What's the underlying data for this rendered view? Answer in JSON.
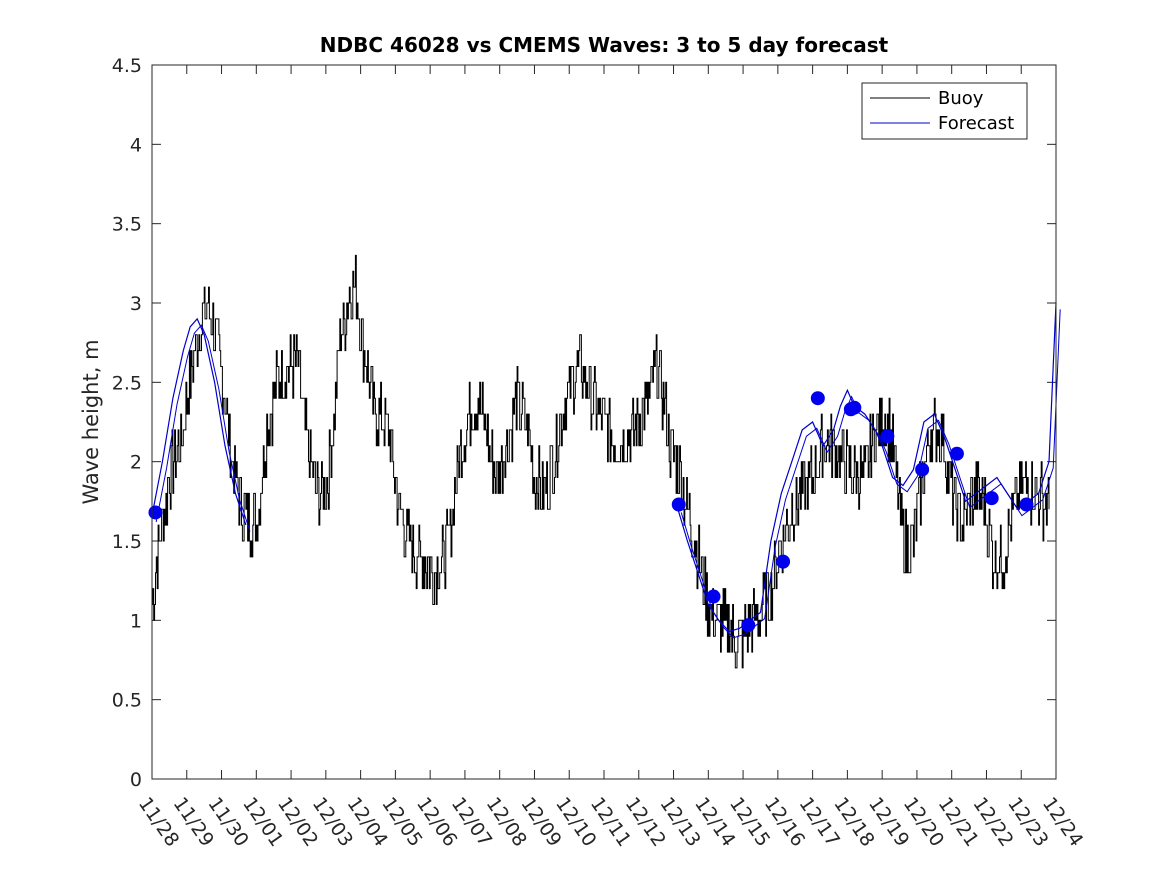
{
  "chart_data": {
    "type": "line",
    "title": "NDBC 46028 vs CMEMS Waves: 3 to 5 day forecast",
    "xlabel": "",
    "ylabel": "Wave height, m",
    "ylim": [
      0,
      4.5
    ],
    "xlim": [
      0,
      26
    ],
    "y_ticks": [
      "0",
      "0.5",
      "1",
      "1.5",
      "2",
      "2.5",
      "3",
      "3.5",
      "4",
      "4.5"
    ],
    "x_tick_labels": [
      "11/28",
      "11/29",
      "11/30",
      "12/01",
      "12/02",
      "12/03",
      "12/04",
      "12/05",
      "12/06",
      "12/07",
      "12/08",
      "12/09",
      "12/10",
      "12/11",
      "12/12",
      "12/13",
      "12/14",
      "12/15",
      "12/16",
      "12/17",
      "12/18",
      "12/19",
      "12/20",
      "12/21",
      "12/22",
      "12/23",
      "12/24"
    ],
    "legend": {
      "position": "top-right",
      "entries": [
        "Buoy",
        "Forecast"
      ]
    },
    "series": [
      {
        "name": "Buoy",
        "color": "#000000",
        "x": [
          0,
          0.15,
          0.5,
          0.9,
          1.0,
          1.3,
          1.6,
          1.9,
          2.1,
          2.3,
          2.6,
          3.0,
          3.3,
          3.6,
          3.9,
          4.2,
          4.4,
          4.7,
          5.0,
          5.2,
          5.4,
          5.55,
          5.7,
          5.85,
          6.1,
          6.4,
          6.8,
          7.1,
          7.4,
          7.7,
          8.1,
          8.4,
          8.6,
          8.8,
          9.1,
          9.4,
          9.7,
          9.9,
          10.2,
          10.5,
          10.8,
          11.0,
          11.3,
          11.7,
          11.9,
          12.3,
          12.7,
          13.1,
          13.4,
          13.9,
          14.3,
          14.5,
          14.7,
          14.9,
          15.1,
          15.4,
          15.7,
          16.0,
          16.3,
          16.6,
          16.8,
          17.0,
          17.1,
          17.3,
          17.5,
          17.8,
          18.1,
          18.4,
          18.7,
          19.0,
          19.3,
          19.6,
          19.9,
          20.2,
          20.5,
          20.8,
          21.1,
          21.3,
          21.5,
          21.7,
          21.9,
          22.1,
          22.4,
          22.7,
          23.0,
          23.3,
          23.6,
          23.9,
          24.2,
          24.5,
          24.8,
          25.0,
          25.2,
          25.5,
          25.8
        ],
        "y": [
          1.1,
          1.4,
          1.9,
          2.2,
          2.4,
          2.8,
          3.0,
          2.7,
          2.4,
          2.0,
          1.7,
          1.6,
          2.2,
          2.5,
          2.6,
          2.6,
          2.2,
          1.8,
          1.8,
          2.2,
          2.8,
          2.9,
          3.1,
          3.1,
          2.7,
          2.3,
          2.2,
          1.7,
          1.5,
          1.4,
          1.3,
          1.4,
          1.6,
          2.0,
          2.3,
          2.4,
          2.1,
          1.9,
          2.1,
          2.4,
          2.2,
          1.9,
          1.8,
          2.2,
          2.4,
          2.6,
          2.4,
          2.2,
          2.1,
          2.2,
          2.4,
          2.6,
          2.4,
          2.1,
          2.0,
          1.7,
          1.4,
          1.1,
          1.0,
          0.95,
          0.85,
          0.9,
          0.95,
          1.0,
          1.05,
          1.2,
          1.5,
          1.7,
          1.8,
          1.9,
          2.1,
          2.1,
          2.0,
          1.95,
          1.9,
          2.2,
          2.3,
          2.1,
          1.7,
          1.45,
          1.5,
          1.8,
          2.2,
          2.2,
          1.8,
          1.6,
          1.8,
          1.75,
          1.4,
          1.4,
          1.7,
          1.85,
          1.85,
          1.8,
          1.7
        ]
      },
      {
        "name": "Forecast",
        "color": "#0000cc",
        "x": [
          0,
          0.3,
          0.6,
          0.9,
          1.1,
          1.3,
          1.5,
          1.8,
          2.1,
          2.4,
          2.7
        ],
        "y": [
          1.66,
          2.0,
          2.4,
          2.7,
          2.85,
          2.9,
          2.8,
          2.5,
          2.1,
          1.8,
          1.6
        ]
      },
      {
        "name": "Forecast",
        "color": "#0000cc",
        "x": [
          15.1,
          15.4,
          15.7,
          16.0,
          16.3,
          16.6,
          16.9,
          17.2,
          17.5,
          17.8,
          18.1,
          18.4,
          18.7,
          19.0,
          19.3,
          19.6,
          19.8,
          20.0,
          20.2,
          20.5,
          20.8,
          21.0,
          21.3,
          21.6,
          21.9,
          22.2,
          22.5,
          22.8,
          23.1,
          23.4,
          23.7,
          24.0,
          24.3,
          24.6,
          24.9,
          25.2,
          25.5,
          25.8,
          26.0
        ],
        "y": [
          1.72,
          1.5,
          1.3,
          1.1,
          1.0,
          0.93,
          0.95,
          1.0,
          1.05,
          1.5,
          1.8,
          2.0,
          2.2,
          2.25,
          2.1,
          2.2,
          2.35,
          2.45,
          2.35,
          2.3,
          2.2,
          2.1,
          1.9,
          1.85,
          1.95,
          2.25,
          2.3,
          2.15,
          1.95,
          1.75,
          1.8,
          1.85,
          1.9,
          1.8,
          1.7,
          1.75,
          1.8,
          2.0,
          3.0
        ]
      }
    ],
    "markers": {
      "name": "Forecast",
      "color": "#0000ee",
      "x": [
        0.1,
        15.15,
        16.15,
        17.15,
        18.15,
        19.15,
        20.1,
        20.2,
        21.15,
        22.15,
        23.15,
        24.15,
        25.15
      ],
      "y": [
        1.68,
        1.73,
        1.15,
        0.97,
        1.37,
        2.4,
        2.33,
        2.34,
        2.16,
        1.95,
        2.05,
        1.77,
        1.73
      ]
    }
  }
}
